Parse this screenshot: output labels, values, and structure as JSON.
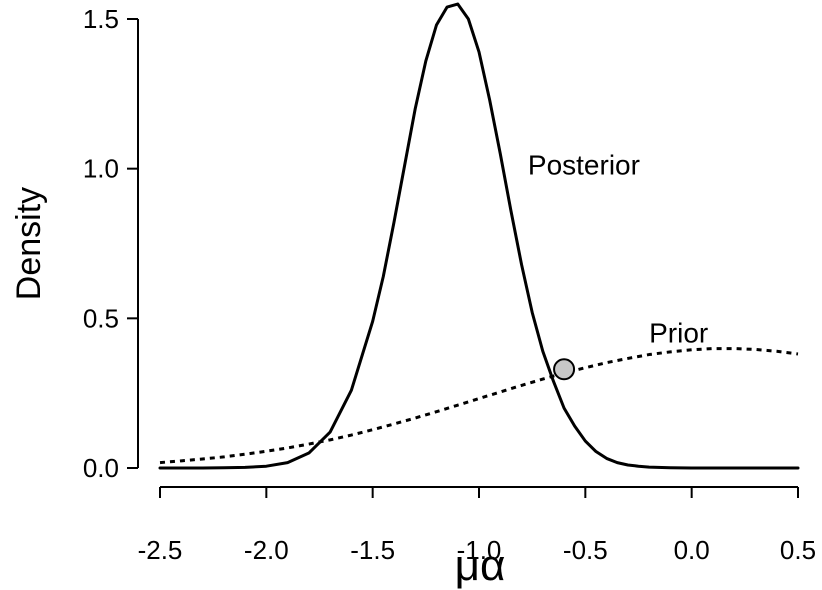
{
  "chart_data": {
    "type": "line",
    "title": "",
    "xlabel": "μα",
    "ylabel": "Density",
    "xlim": [
      -2.5,
      0.5
    ],
    "ylim": [
      0,
      1.5
    ],
    "xticks": [
      -2.5,
      -2.0,
      -1.5,
      -1.0,
      -0.5,
      0.0,
      0.5
    ],
    "xtick_labels": [
      "-2.5",
      "-2.0",
      "-1.5",
      "-1.0",
      "-0.5",
      "0.0",
      "0.5"
    ],
    "yticks": [
      0.0,
      0.5,
      1.0,
      1.5
    ],
    "ytick_labels": [
      "0.0",
      "0.5",
      "1.0",
      "1.5"
    ],
    "grid": false,
    "legend": "none",
    "series": [
      {
        "name": "Posterior",
        "style": "solid",
        "color": "#000000",
        "label_anchor": {
          "x": -0.77,
          "y": 0.98
        },
        "x": [
          -2.5,
          -2.4,
          -2.3,
          -2.2,
          -2.1,
          -2.0,
          -1.9,
          -1.8,
          -1.7,
          -1.6,
          -1.5,
          -1.45,
          -1.4,
          -1.35,
          -1.3,
          -1.25,
          -1.2,
          -1.15,
          -1.1,
          -1.05,
          -1.0,
          -0.95,
          -0.9,
          -0.85,
          -0.8,
          -0.75,
          -0.7,
          -0.65,
          -0.6,
          -0.55,
          -0.5,
          -0.45,
          -0.4,
          -0.35,
          -0.3,
          -0.25,
          -0.2,
          -0.1,
          0.0,
          0.1,
          0.2,
          0.3,
          0.4,
          0.5
        ],
        "y": [
          0.0,
          0.0,
          0.0,
          0.001,
          0.002,
          0.006,
          0.018,
          0.05,
          0.12,
          0.26,
          0.49,
          0.64,
          0.82,
          1.01,
          1.2,
          1.36,
          1.48,
          1.54,
          1.55,
          1.5,
          1.39,
          1.23,
          1.05,
          0.86,
          0.68,
          0.52,
          0.39,
          0.29,
          0.2,
          0.14,
          0.09,
          0.055,
          0.032,
          0.018,
          0.01,
          0.006,
          0.003,
          0.001,
          0.0,
          0.0,
          0.0,
          0.0,
          0.0,
          0.0
        ]
      },
      {
        "name": "Prior",
        "style": "dotted",
        "color": "#000000",
        "label_anchor": {
          "x": -0.2,
          "y": 0.42
        },
        "x": [
          -2.5,
          -2.4,
          -2.3,
          -2.2,
          -2.1,
          -2.0,
          -1.9,
          -1.8,
          -1.7,
          -1.6,
          -1.5,
          -1.4,
          -1.3,
          -1.2,
          -1.1,
          -1.0,
          -0.9,
          -0.8,
          -0.7,
          -0.6,
          -0.5,
          -0.4,
          -0.3,
          -0.2,
          -0.1,
          0.0,
          0.1,
          0.2,
          0.3,
          0.4,
          0.5
        ],
        "y": [
          0.018,
          0.024,
          0.03,
          0.037,
          0.046,
          0.056,
          0.067,
          0.08,
          0.094,
          0.11,
          0.128,
          0.147,
          0.167,
          0.188,
          0.21,
          0.232,
          0.254,
          0.276,
          0.297,
          0.317,
          0.335,
          0.352,
          0.366,
          0.379,
          0.388,
          0.395,
          0.399,
          0.399,
          0.396,
          0.39,
          0.381
        ]
      }
    ],
    "annotations": [
      {
        "type": "point",
        "label": "intersection",
        "x": -0.6,
        "y": 0.33,
        "fill": "#c8c8c8",
        "stroke": "#000000"
      }
    ]
  }
}
